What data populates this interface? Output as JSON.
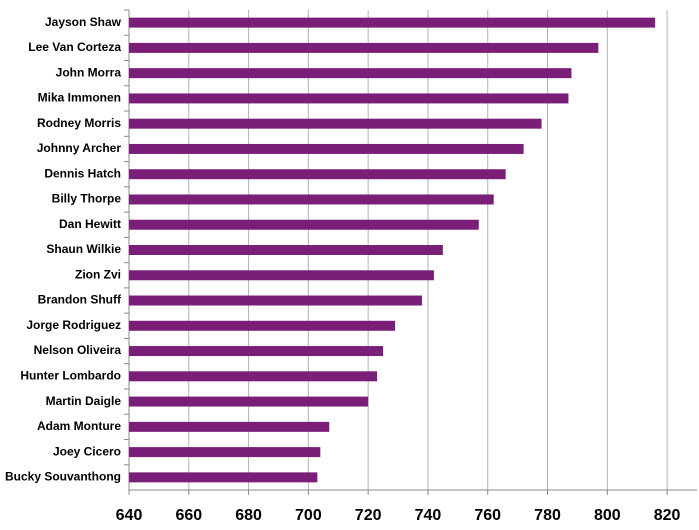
{
  "chart_data": {
    "type": "bar",
    "orientation": "horizontal",
    "categories": [
      "Jayson Shaw",
      "Lee Van Corteza",
      "John Morra",
      "Mika Immonen",
      "Rodney Morris",
      "Johnny Archer",
      "Dennis Hatch",
      "Billy Thorpe",
      "Dan Hewitt",
      "Shaun Wilkie",
      "Zion Zvi",
      "Brandon Shuff",
      "Jorge Rodriguez",
      "Nelson Oliveira",
      "Hunter Lombardo",
      "Martin Daigle",
      "Adam Monture",
      "Joey Cicero",
      "Bucky Souvanthong"
    ],
    "values": [
      816,
      797,
      788,
      787,
      778,
      772,
      766,
      762,
      757,
      745,
      742,
      738,
      729,
      725,
      723,
      720,
      707,
      704,
      703
    ],
    "color": "#7a1f78",
    "xlim": [
      640,
      830
    ],
    "xticks": [
      640,
      660,
      680,
      700,
      720,
      740,
      760,
      780,
      800,
      820
    ],
    "grid": true
  }
}
